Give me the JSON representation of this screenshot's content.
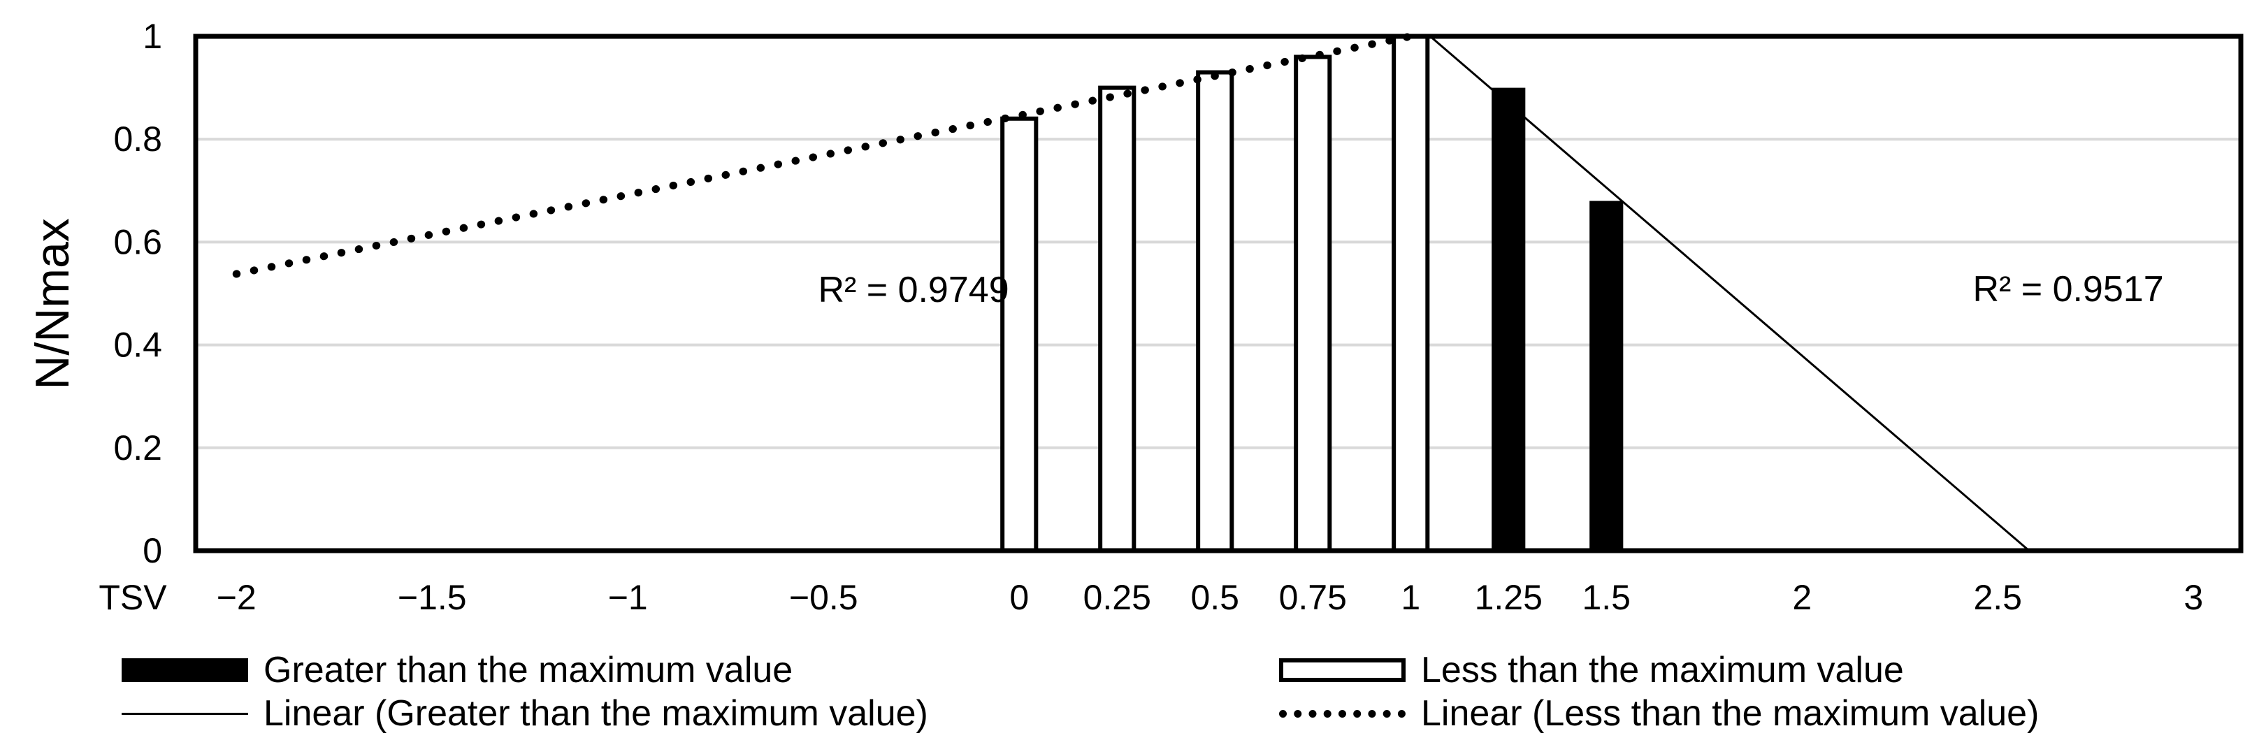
{
  "chart_data": {
    "type": "bar",
    "title": "",
    "xlabel": "TSV",
    "ylabel": "N/Nmax",
    "x_range": [
      -2.104,
      3.121
    ],
    "y_range": [
      0,
      1
    ],
    "grid": "horizontal-only",
    "x_ticks": [
      {
        "v": -2,
        "label": "−2"
      },
      {
        "v": -1.5,
        "label": "−1.5"
      },
      {
        "v": -1,
        "label": "−1"
      },
      {
        "v": -0.5,
        "label": "−0.5"
      },
      {
        "v": 0,
        "label": "0"
      },
      {
        "v": 0.25,
        "label": "0.25"
      },
      {
        "v": 0.5,
        "label": "0.5"
      },
      {
        "v": 0.75,
        "label": "0.75"
      },
      {
        "v": 1,
        "label": "1"
      },
      {
        "v": 1.25,
        "label": "1.25"
      },
      {
        "v": 1.5,
        "label": "1.5"
      },
      {
        "v": 2,
        "label": "2"
      },
      {
        "v": 2.5,
        "label": "2.5"
      },
      {
        "v": 3,
        "label": "3"
      }
    ],
    "y_ticks": [
      {
        "v": 0,
        "label": "0"
      },
      {
        "v": 0.2,
        "label": "0.2"
      },
      {
        "v": 0.4,
        "label": "0.4"
      },
      {
        "v": 0.6,
        "label": "0.6"
      },
      {
        "v": 0.8,
        "label": "0.8"
      },
      {
        "v": 1,
        "label": "1"
      }
    ],
    "bar_width_units": 0.086,
    "series": [
      {
        "name": "Less than the maximum value",
        "style": "outline",
        "points": [
          [
            0,
            0.84
          ],
          [
            0.25,
            0.9
          ],
          [
            0.5,
            0.93
          ],
          [
            0.75,
            0.96
          ],
          [
            1,
            1.0
          ]
        ]
      },
      {
        "name": "Greater than the maximum value",
        "style": "filled",
        "points": [
          [
            1.25,
            0.9
          ],
          [
            1.5,
            0.68
          ]
        ]
      }
    ],
    "trendlines": [
      {
        "for": "Less than the maximum value",
        "style": "dotted",
        "from": [
          -2.0,
          0.538
        ],
        "to": [
          1.0,
          1.0
        ],
        "r2_label": "R² = 0.9749",
        "r2_pos": [
          -0.27,
          0.507
        ]
      },
      {
        "for": "Greater than the maximum value",
        "style": "thin-solid",
        "from": [
          1.05,
          1.0
        ],
        "to": [
          2.58,
          0.0
        ],
        "r2_label": "R² = 0.9517",
        "r2_pos": [
          2.68,
          0.508
        ]
      }
    ]
  },
  "legend": {
    "items": [
      {
        "label": "Greater than the maximum value",
        "swatch": "filled-bar"
      },
      {
        "label": "Linear (Greater than the maximum value)",
        "swatch": "thin-line"
      },
      {
        "label": "Less than the maximum value",
        "swatch": "outline-bar"
      },
      {
        "label": "Linear (Less than the maximum value)",
        "swatch": "dotted-line"
      }
    ],
    "position": "bottom-two-columns"
  },
  "colors": {
    "background": "#ffffff",
    "text": "#000000",
    "axis": "#000000",
    "grid": "#d9d9d9",
    "bar_fill": "#000000",
    "bar_outline": "#000000",
    "bar_face": "#ffffff"
  }
}
